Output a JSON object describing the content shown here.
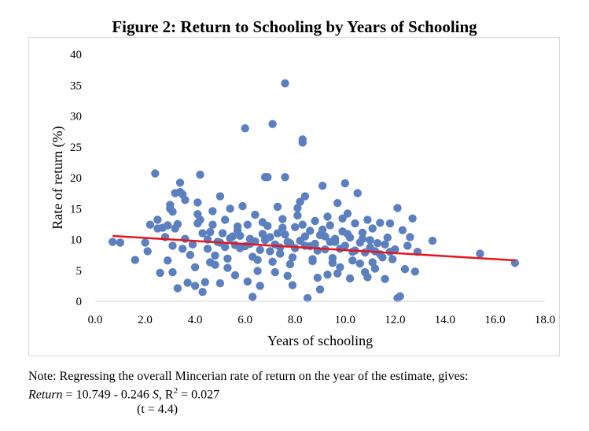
{
  "chart_data": {
    "type": "scatter",
    "title": "Figure 2: Return to Schooling by Years of Schooling",
    "xlabel": "Years of schooling",
    "ylabel": "Rate of return (%)",
    "xlim": [
      0,
      18
    ],
    "ylim": [
      0,
      40
    ],
    "x_ticks": [
      "0.0",
      "2.0",
      "4.0",
      "6.0",
      "8.0",
      "10.0",
      "12.0",
      "14.0",
      "16.0",
      "18.0"
    ],
    "y_ticks": [
      "0",
      "5",
      "10",
      "15",
      "20",
      "25",
      "30",
      "35",
      "40"
    ],
    "grid": false,
    "legend": "none",
    "marker_color": "#5b7fbf",
    "trend_color": "#e8141b",
    "series": [
      {
        "name": "Estimates",
        "points": [
          [
            0.7,
            9.6
          ],
          [
            1.0,
            9.5
          ],
          [
            1.6,
            6.7
          ],
          [
            2.0,
            9.5
          ],
          [
            2.1,
            8.1
          ],
          [
            2.2,
            12.4
          ],
          [
            2.4,
            20.7
          ],
          [
            2.5,
            11.8
          ],
          [
            2.5,
            13.2
          ],
          [
            2.6,
            4.6
          ],
          [
            2.7,
            11.9
          ],
          [
            2.8,
            10.4
          ],
          [
            2.9,
            6.6
          ],
          [
            2.9,
            12.3
          ],
          [
            3.0,
            15.6
          ],
          [
            3.0,
            15.0
          ],
          [
            3.1,
            14.5
          ],
          [
            3.1,
            4.7
          ],
          [
            3.1,
            9.0
          ],
          [
            3.2,
            17.5
          ],
          [
            3.2,
            11.8
          ],
          [
            3.3,
            12.5
          ],
          [
            3.3,
            2.1
          ],
          [
            3.4,
            17.7
          ],
          [
            3.4,
            19.2
          ],
          [
            3.5,
            17.3
          ],
          [
            3.5,
            8.5
          ],
          [
            3.6,
            16.4
          ],
          [
            3.6,
            10.1
          ],
          [
            3.7,
            3.0
          ],
          [
            3.8,
            7.5
          ],
          [
            3.9,
            9.2
          ],
          [
            4.0,
            5.5
          ],
          [
            4.0,
            2.5
          ],
          [
            4.1,
            14.1
          ],
          [
            4.1,
            16.0
          ],
          [
            4.1,
            12.6
          ],
          [
            4.2,
            20.5
          ],
          [
            4.2,
            13.2
          ],
          [
            4.3,
            11.0
          ],
          [
            4.3,
            1.5
          ],
          [
            4.4,
            3.1
          ],
          [
            4.5,
            10.0
          ],
          [
            4.5,
            8.5
          ],
          [
            4.6,
            6.3
          ],
          [
            4.7,
            14.6
          ],
          [
            4.7,
            12.4
          ],
          [
            4.8,
            7.4
          ],
          [
            4.9,
            9.6
          ],
          [
            5.0,
            2.9
          ],
          [
            5.0,
            17.0
          ],
          [
            5.1,
            11.0
          ],
          [
            5.2,
            13.2
          ],
          [
            5.3,
            5.4
          ],
          [
            5.4,
            15.0
          ],
          [
            5.5,
            10.5
          ],
          [
            5.6,
            4.2
          ],
          [
            5.7,
            11.5
          ],
          [
            5.8,
            8.6
          ],
          [
            5.9,
            15.4
          ],
          [
            6.0,
            28.0
          ],
          [
            6.1,
            12.4
          ],
          [
            6.1,
            3.2
          ],
          [
            6.2,
            9.3
          ],
          [
            6.3,
            0.7
          ],
          [
            6.4,
            14.0
          ],
          [
            6.5,
            6.7
          ],
          [
            6.6,
            2.5
          ],
          [
            6.7,
            10.9
          ],
          [
            6.8,
            20.1
          ],
          [
            6.9,
            20.1
          ],
          [
            6.9,
            12.2
          ],
          [
            7.0,
            8.1
          ],
          [
            7.1,
            28.7
          ],
          [
            7.2,
            4.7
          ],
          [
            7.3,
            15.3
          ],
          [
            7.3,
            11.0
          ],
          [
            7.4,
            7.7
          ],
          [
            7.5,
            13.3
          ],
          [
            7.6,
            35.3
          ],
          [
            7.6,
            20.1
          ],
          [
            7.7,
            9.6
          ],
          [
            7.8,
            6.0
          ],
          [
            7.9,
            2.6
          ],
          [
            8.0,
            12.0
          ],
          [
            8.1,
            15.1
          ],
          [
            8.2,
            16.1
          ],
          [
            8.3,
            26.2
          ],
          [
            8.3,
            25.7
          ],
          [
            8.4,
            17.0
          ],
          [
            8.4,
            9.0
          ],
          [
            8.5,
            0.5
          ],
          [
            8.6,
            11.4
          ],
          [
            8.7,
            6.5
          ],
          [
            8.8,
            13.0
          ],
          [
            8.9,
            8.2
          ],
          [
            9.0,
            1.9
          ],
          [
            9.1,
            18.7
          ],
          [
            9.2,
            10.5
          ],
          [
            9.3,
            4.3
          ],
          [
            9.4,
            12.3
          ],
          [
            9.5,
            7.0
          ],
          [
            9.6,
            9.6
          ],
          [
            9.7,
            15.9
          ],
          [
            9.8,
            5.5
          ],
          [
            9.9,
            13.4
          ],
          [
            10.0,
            19.1
          ],
          [
            10.1,
            10.9
          ],
          [
            10.2,
            3.7
          ],
          [
            10.3,
            8.0
          ],
          [
            10.4,
            12.6
          ],
          [
            10.5,
            17.5
          ],
          [
            10.6,
            6.1
          ],
          [
            10.7,
            10.1
          ],
          [
            10.8,
            4.7
          ],
          [
            10.9,
            13.2
          ],
          [
            11.0,
            8.7
          ],
          [
            11.1,
            11.8
          ],
          [
            11.2,
            5.3
          ],
          [
            11.3,
            9.4
          ],
          [
            11.4,
            12.7
          ],
          [
            11.5,
            7.1
          ],
          [
            11.6,
            3.6
          ],
          [
            11.7,
            10.3
          ],
          [
            11.8,
            12.6
          ],
          [
            11.9,
            6.8
          ],
          [
            12.0,
            8.4
          ],
          [
            12.1,
            0.5
          ],
          [
            12.1,
            15.1
          ],
          [
            12.2,
            0.8
          ],
          [
            12.3,
            11.5
          ],
          [
            12.4,
            5.2
          ],
          [
            12.5,
            9.0
          ],
          [
            12.6,
            10.4
          ],
          [
            12.7,
            13.4
          ],
          [
            12.8,
            4.8
          ],
          [
            12.9,
            8.0
          ],
          [
            13.5,
            9.8
          ],
          [
            15.4,
            7.7
          ],
          [
            16.8,
            6.2
          ],
          [
            5.0,
            9.5
          ],
          [
            5.2,
            8.8
          ],
          [
            5.4,
            10.2
          ],
          [
            5.6,
            9.1
          ],
          [
            5.8,
            10.6
          ],
          [
            6.0,
            8.9
          ],
          [
            6.2,
            10.1
          ],
          [
            6.4,
            9.7
          ],
          [
            6.6,
            8.3
          ],
          [
            6.8,
            9.9
          ],
          [
            7.0,
            10.4
          ],
          [
            7.2,
            9.2
          ],
          [
            7.4,
            8.7
          ],
          [
            7.6,
            10.8
          ],
          [
            7.8,
            9.4
          ],
          [
            8.0,
            8.6
          ],
          [
            8.2,
            9.8
          ],
          [
            8.4,
            10.5
          ],
          [
            8.6,
            8.9
          ],
          [
            8.8,
            9.3
          ],
          [
            9.0,
            10.7
          ],
          [
            9.2,
            8.4
          ],
          [
            9.4,
            9.6
          ],
          [
            9.6,
            10.1
          ],
          [
            9.8,
            8.5
          ],
          [
            10.0,
            9.0
          ],
          [
            10.2,
            10.3
          ],
          [
            10.4,
            8.2
          ],
          [
            10.6,
            9.5
          ],
          [
            10.8,
            7.9
          ],
          [
            11.0,
            9.9
          ],
          [
            11.2,
            8.1
          ],
          [
            11.4,
            7.6
          ],
          [
            11.6,
            9.2
          ],
          [
            11.8,
            8.0
          ],
          [
            5.3,
            6.9
          ],
          [
            5.7,
            12.1
          ],
          [
            6.3,
            7.2
          ],
          [
            6.7,
            12.8
          ],
          [
            7.1,
            6.4
          ],
          [
            7.5,
            11.9
          ],
          [
            7.9,
            7.1
          ],
          [
            8.3,
            12.4
          ],
          [
            8.7,
            6.8
          ],
          [
            9.1,
            11.6
          ],
          [
            9.5,
            6.2
          ],
          [
            9.9,
            11.3
          ],
          [
            10.3,
            6.6
          ],
          [
            10.7,
            11.1
          ],
          [
            11.1,
            6.3
          ],
          [
            4.6,
            11.2
          ],
          [
            4.8,
            5.9
          ],
          [
            6.5,
            4.9
          ],
          [
            7.7,
            4.1
          ],
          [
            8.9,
            3.8
          ],
          [
            9.7,
            4.5
          ],
          [
            10.9,
            3.9
          ],
          [
            8.1,
            13.9
          ],
          [
            9.3,
            13.7
          ],
          [
            10.1,
            14.2
          ]
        ]
      }
    ],
    "trend_line": {
      "x": [
        0.7,
        16.8
      ],
      "y": [
        10.57,
        6.62
      ]
    }
  },
  "note": {
    "line1": "Note: Regressing the overall Mincerian rate of return on the year of the estimate, gives:",
    "equation_var": "Return",
    "equation_rest": " = 10.749 - 0.246 ",
    "equation_s": "S",
    "equation_r2": ", R",
    "equation_sup": "2",
    "equation_end": " = 0.027",
    "tstat": "(t = 4.4)"
  }
}
